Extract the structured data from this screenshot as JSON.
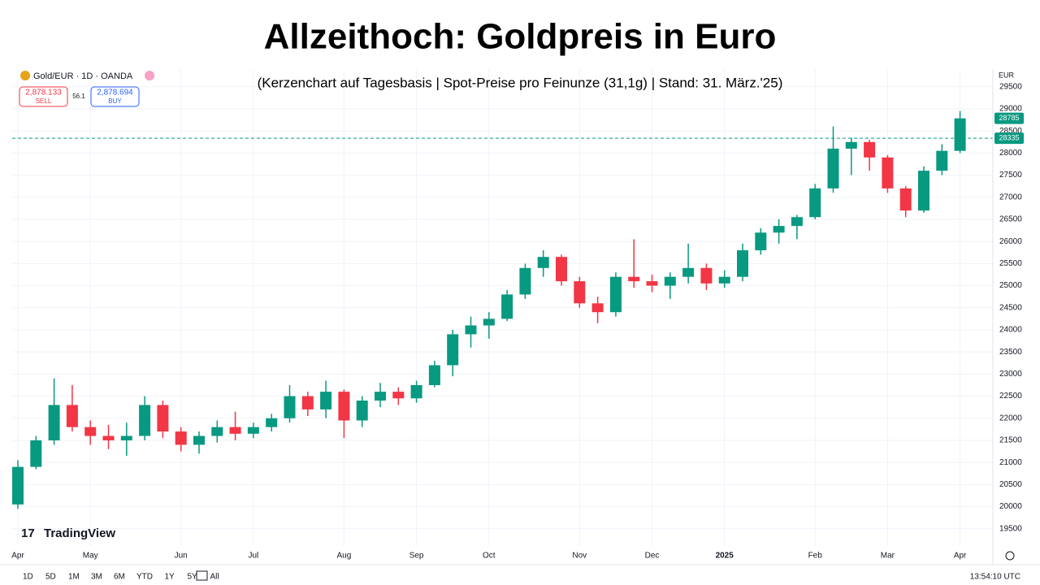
{
  "ui": {
    "symbol": "Gold/EUR · 1D · OANDA",
    "sell_price": "2,878.133",
    "sell_label": "SELL",
    "spread": "56.1",
    "buy_price": "2,878.694",
    "buy_label": "BUY",
    "currency": "EUR",
    "logo": "TradingView",
    "timeframes": [
      "1D",
      "5D",
      "1M",
      "3M",
      "6M",
      "YTD",
      "1Y",
      "5Y",
      "All"
    ],
    "clock": "13:54:10 UTC"
  },
  "chart_data": {
    "type": "candlestick",
    "title": "Allzeithoch: Goldpreis in Euro",
    "subtitle": "(Kerzenchart auf Tagesbasis | Spot-Preise pro Feinunze (31,1g) | Stand: 31. März.'25)",
    "categories": [
      "Apr",
      null,
      null,
      null,
      "May",
      null,
      null,
      null,
      null,
      "Jun",
      null,
      null,
      null,
      "Jul",
      null,
      null,
      null,
      null,
      "Aug",
      null,
      null,
      null,
      "Sep",
      null,
      null,
      null,
      "Oct",
      null,
      null,
      null,
      null,
      "Nov",
      null,
      null,
      null,
      "Dec",
      null,
      null,
      null,
      "2025",
      null,
      null,
      null,
      null,
      "Feb",
      null,
      null,
      null,
      "Mar",
      null,
      null,
      null,
      "Apr"
    ],
    "open": [
      20050,
      20900,
      21500,
      22300,
      21800,
      21600,
      21500,
      21600,
      22300,
      21700,
      21400,
      21600,
      21800,
      21650,
      21800,
      22000,
      22500,
      22200,
      22600,
      21950,
      22400,
      22600,
      22450,
      22750,
      23200,
      23900,
      24100,
      24250,
      24800,
      25400,
      25650,
      25100,
      24600,
      24400,
      25200,
      25100,
      25000,
      25200,
      25400,
      25050,
      25200,
      25800,
      26200,
      26350,
      26550,
      27200,
      28100,
      28250,
      27900,
      27200,
      26700,
      27600,
      28050
    ],
    "high": [
      21050,
      21600,
      22900,
      22750,
      21950,
      21850,
      21900,
      22500,
      22400,
      21800,
      21700,
      21950,
      22150,
      21900,
      22100,
      22750,
      22600,
      22850,
      22650,
      22500,
      22800,
      22700,
      22850,
      23300,
      24000,
      24300,
      24400,
      24900,
      25500,
      25800,
      25700,
      25200,
      24750,
      25300,
      26050,
      25250,
      25300,
      25950,
      25500,
      25350,
      25950,
      26300,
      26500,
      26600,
      27300,
      28600,
      28350,
      28300,
      27950,
      27250,
      27700,
      28200,
      28950
    ],
    "low": [
      19950,
      20850,
      21400,
      21700,
      21400,
      21300,
      21150,
      21500,
      21550,
      21250,
      21200,
      21450,
      21500,
      21550,
      21700,
      21900,
      22050,
      22000,
      21550,
      21800,
      22250,
      22300,
      22350,
      22700,
      22950,
      23600,
      23800,
      24200,
      24700,
      25200,
      25000,
      24500,
      24150,
      24300,
      24950,
      24850,
      24700,
      25050,
      24900,
      24950,
      25100,
      25700,
      25950,
      26050,
      26500,
      27100,
      27500,
      27600,
      27100,
      26550,
      26650,
      27500,
      28000
    ],
    "close": [
      20900,
      21500,
      22300,
      21800,
      21600,
      21500,
      21600,
      22300,
      21700,
      21400,
      21600,
      21800,
      21650,
      21800,
      22000,
      22500,
      22200,
      22600,
      21950,
      22400,
      22600,
      22450,
      22750,
      23200,
      23900,
      24100,
      24250,
      24800,
      25400,
      25650,
      25100,
      24600,
      24400,
      25200,
      25100,
      25000,
      25200,
      25400,
      25050,
      25200,
      25800,
      26200,
      26350,
      26550,
      27200,
      28100,
      28250,
      27900,
      27200,
      26700,
      27600,
      28050,
      28785
    ],
    "up_color": "#089981",
    "down_color": "#f23645",
    "last_price": 28785,
    "last_price_label": "28785",
    "ref_line": 28335,
    "ref_line_label": "28335",
    "ylim": [
      19110,
      29900
    ],
    "yticks": [
      19500,
      20000,
      20500,
      21000,
      21500,
      22000,
      22500,
      23000,
      23500,
      24000,
      24500,
      25000,
      25500,
      26000,
      26500,
      27000,
      27500,
      28000,
      28500,
      29000,
      29500
    ],
    "grid": true
  }
}
